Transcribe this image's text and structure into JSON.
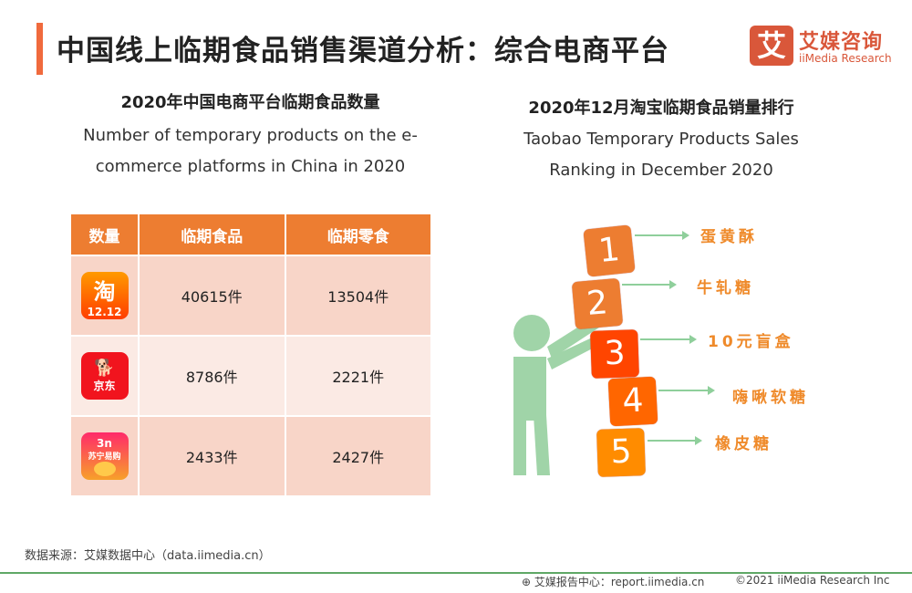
{
  "header": {
    "title": "中国线上临期食品销售渠道分析：综合电商平台",
    "logo_mark": "艾",
    "logo_cn": "艾媒咨询",
    "logo_en": "iiMedia Research"
  },
  "left": {
    "title": "2020年中国电商平台临期食品数量",
    "subtitle_line1": "Number of temporary products on the e-",
    "subtitle_line2": "commerce platforms in China in 2020",
    "table": {
      "headers": [
        "数量",
        "临期食品",
        "临期零食"
      ],
      "rows": [
        {
          "platform_logo": "taobao-logo",
          "logo_text": "淘",
          "logo_sub": "12.12",
          "food": "40615件",
          "snack": "13504件"
        },
        {
          "platform_logo": "jd-logo",
          "logo_text": "🐕",
          "logo_sub": "京东",
          "food": "8786件",
          "snack": "2221件"
        },
        {
          "platform_logo": "suning-logo",
          "logo_text": "3n",
          "logo_sub": "苏宁易购",
          "food": "2433件",
          "snack": "2427件"
        }
      ]
    }
  },
  "right": {
    "title": "2020年12月淘宝临期食品销量排行",
    "subtitle_line1": "Taobao Temporary Products Sales",
    "subtitle_line2": "Ranking in December 2020",
    "ranking": [
      {
        "rank": "1",
        "name": "蛋黄酥",
        "color": "#ed7d31"
      },
      {
        "rank": "2",
        "name": "牛轧糖",
        "color": "#ed7d31"
      },
      {
        "rank": "3",
        "name": "10元盲盒",
        "color": "#ff4500"
      },
      {
        "rank": "4",
        "name": "嗨啾软糖",
        "color": "#ff6600"
      },
      {
        "rank": "5",
        "name": "橡皮糖",
        "color": "#ff8c00"
      }
    ]
  },
  "footer": {
    "source": "数据来源：艾媒数据中心（data.iimedia.cn）",
    "report": "艾媒报告中心：report.iimedia.cn",
    "copyright": "©2021  iiMedia Research  Inc"
  }
}
